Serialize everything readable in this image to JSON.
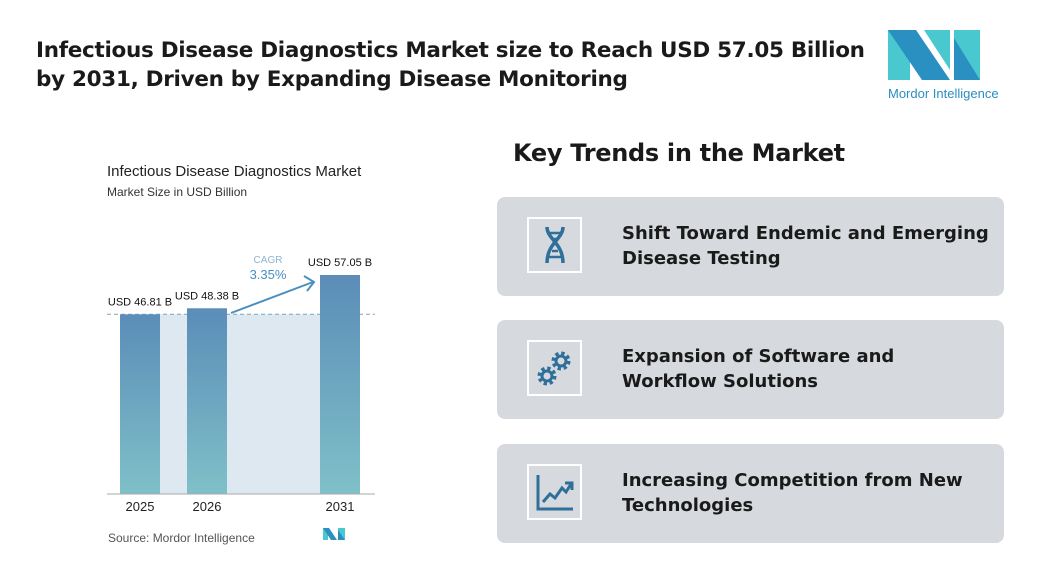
{
  "header": {
    "title": "Infectious Disease Diagnostics Market size to Reach USD 57.05 Billion by 2031, Driven by Expanding Disease Monitoring",
    "logo_text": "Mordor Intelligence"
  },
  "chart_data": {
    "type": "bar",
    "title": "Infectious Disease Diagnostics Market",
    "subtitle": "Market Size in USD Billion",
    "categories": [
      "2025",
      "2026",
      "2031"
    ],
    "values": [
      46.81,
      48.38,
      57.05
    ],
    "data_labels": [
      "USD 46.81 B",
      "USD 48.38 B",
      "USD 57.05 B"
    ],
    "annotation": {
      "label": "CAGR",
      "value": "3.35%"
    },
    "ylim": [
      0,
      57.05
    ],
    "grid": false,
    "colors": {
      "bar_top": "#5b8db8",
      "bar_bottom": "#7fc0c8",
      "shade": "#dde8f0",
      "annotation": "#4a8fc0"
    },
    "source": "Source: Mordor Intelligence"
  },
  "trends": {
    "heading": "Key Trends in the Market",
    "items": [
      {
        "icon": "dna-icon",
        "label": "Shift Toward Endemic and Emerging Disease Testing"
      },
      {
        "icon": "gears-icon",
        "label": "Expansion of Software and Workflow Solutions"
      },
      {
        "icon": "trend-chart-icon",
        "label": "Increasing Competition from New Technologies"
      }
    ]
  }
}
